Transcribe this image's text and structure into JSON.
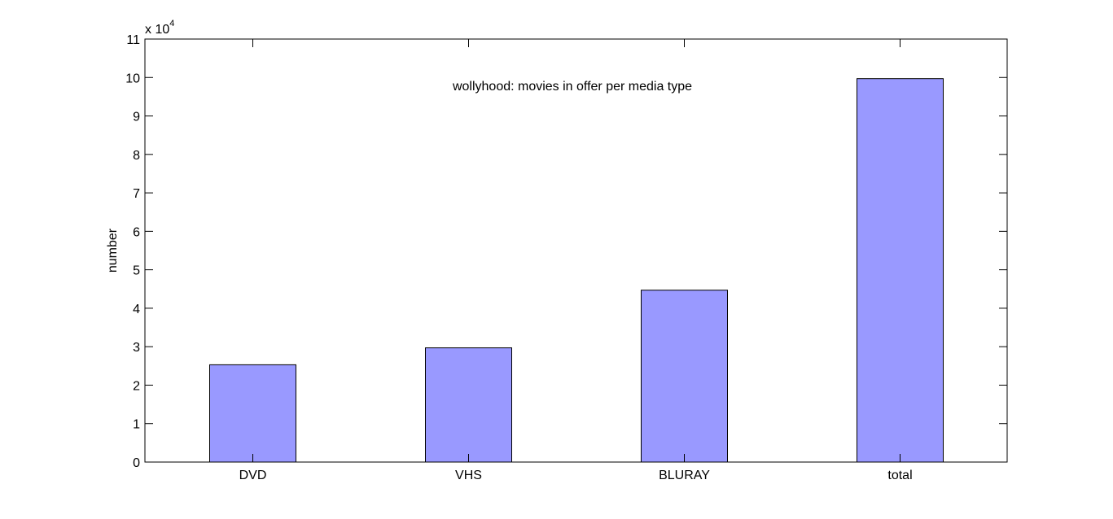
{
  "chart_data": {
    "type": "bar",
    "categories": [
      "DVD",
      "VHS",
      "BLURAY",
      "total"
    ],
    "values": [
      25300,
      29700,
      44700,
      99700
    ],
    "title": "",
    "annotation": "wollyhood: movies in offer per media type",
    "xlabel": "",
    "ylabel": "number",
    "ylim": [
      0,
      110000
    ],
    "yticks": [
      0,
      10000,
      20000,
      30000,
      40000,
      50000,
      60000,
      70000,
      80000,
      90000,
      100000,
      110000
    ],
    "ytick_labels": [
      "0",
      "1",
      "2",
      "3",
      "4",
      "5",
      "6",
      "7",
      "8",
      "9",
      "10",
      "11"
    ],
    "y_multiplier_base": "x 10",
    "y_multiplier_exponent": "4",
    "bar_color": "#9999ff",
    "bar_edge_color": "#000000",
    "grid": false
  }
}
